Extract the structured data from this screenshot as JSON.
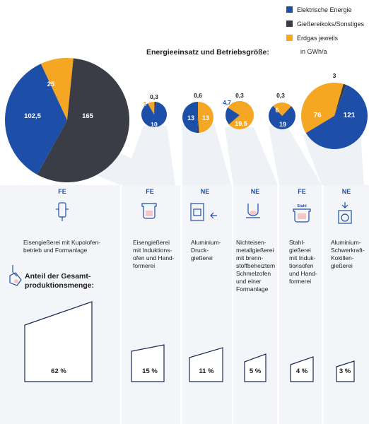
{
  "legend": [
    {
      "label": "Elektrische Energie",
      "color": "#1e4fa8"
    },
    {
      "label": "Gießereikoks/Sonstiges",
      "color": "#3a3d45"
    },
    {
      "label": "Erdgas jeweils",
      "color": "#f5a623"
    }
  ],
  "title": "Energieeinsatz und Betriebsgröße:",
  "unit": "in GWh/a",
  "share_title_line1": "Anteil der Gesamt-",
  "share_title_line2": "produktionsmenge:",
  "colors": {
    "electric": "#1e4fa8",
    "coke": "#3a3d45",
    "gas": "#f5a623"
  },
  "chart_data": {
    "type": "pie",
    "series_names": [
      "Elektrische Energie",
      "Gießereikoks/Sonstiges",
      "Erdgas"
    ],
    "plants": [
      {
        "category": "FE",
        "description": [
          "Eisengießerei mit Kupolofen-",
          "betrieb und Formanlage"
        ],
        "electric": 102.5,
        "coke": 165,
        "gas": 25,
        "electric_label": "102,5",
        "coke_label": "165",
        "gas_label": "25",
        "share": "62 %",
        "icon": "cupola-furnace-icon"
      },
      {
        "category": "FE",
        "description": [
          "Eisengießerei",
          "mit Induktions-",
          "ofen und Hand-",
          "formerei"
        ],
        "electric": 10,
        "coke": 0.3,
        "gas": 1,
        "electric_label": "10",
        "coke_label": "0,3",
        "gas_label": "1",
        "share": "15 %",
        "icon": "induction-furnace-icon"
      },
      {
        "category": "NE",
        "description": [
          "Aluminium-",
          "Druck-",
          "gießerei"
        ],
        "electric": 13,
        "coke": 0.6,
        "gas": 13,
        "electric_label": "13",
        "coke_label": "0,6",
        "gas_label": "13",
        "share": "11 %",
        "icon": "die-casting-icon"
      },
      {
        "category": "NE",
        "description": [
          "Nichteisen-",
          "metallgießerei",
          "mit brenn-",
          "stoffbeheiztem",
          "Schmelzofen",
          "und einer",
          "Formanlage"
        ],
        "electric": 4.7,
        "coke": 0.3,
        "gas": 19.5,
        "electric_label": "4,7",
        "coke_label": "0,3",
        "gas_label": "19,5",
        "share": "5 %",
        "icon": "fuel-furnace-icon"
      },
      {
        "category": "FE",
        "description": [
          "Stahl-",
          "gießerei",
          "mit Induk-",
          "tionsofen",
          "und Hand-",
          "formerei"
        ],
        "electric": 19,
        "coke": 0.3,
        "gas": 6,
        "electric_label": "19",
        "coke_label": "0,3",
        "gas_label": "6",
        "share": "4 %",
        "icon": "steel-induction-icon",
        "icon_text": "Stahl"
      },
      {
        "category": "NE",
        "description": [
          "Aluminium-",
          "Schwerkraft-",
          "Kokillen-",
          "gießerei"
        ],
        "electric": 121,
        "coke": 3,
        "gas": 76,
        "electric_label": "121",
        "coke_label": "3",
        "gas_label": "76",
        "share": "3 %",
        "icon": "gravity-die-icon"
      }
    ]
  }
}
